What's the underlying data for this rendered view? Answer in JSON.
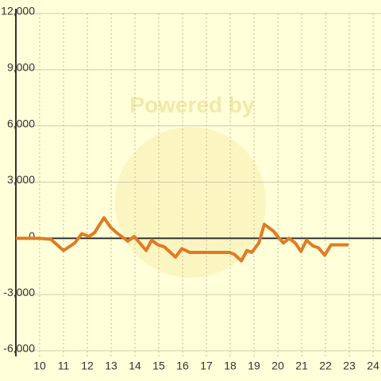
{
  "chart_data": {
    "type": "line",
    "watermark": "Powered by",
    "x": [
      9.0,
      10.0,
      10.47,
      11.0,
      11.47,
      11.77,
      12.07,
      12.3,
      12.5,
      12.7,
      12.97,
      13.23,
      13.7,
      13.97,
      14.47,
      14.7,
      14.97,
      15.23,
      15.7,
      15.97,
      16.3,
      17.97,
      18.17,
      18.47,
      18.7,
      18.9,
      19.2,
      19.43,
      19.8,
      20.23,
      20.47,
      20.73,
      20.97,
      21.2,
      21.47,
      21.7,
      21.97,
      22.23,
      22.97
    ],
    "series": [
      {
        "color": "#e07b24",
        "values": [
          0,
          0,
          -50,
          -650,
          -250,
          250,
          100,
          300,
          700,
          1100,
          600,
          300,
          -150,
          100,
          -650,
          -100,
          -350,
          -450,
          -1000,
          -550,
          -750,
          -750,
          -850,
          -1200,
          -650,
          -750,
          -250,
          750,
          400,
          -250,
          0,
          -250,
          -700,
          -100,
          -400,
          -500,
          -900,
          -350,
          -350
        ]
      }
    ],
    "xlim": [
      9,
      24.33
    ],
    "xticks": [
      10,
      11,
      12,
      13,
      14,
      15,
      16,
      17,
      18,
      19,
      20,
      21,
      22,
      23,
      24
    ],
    "ylim": [
      -6300,
      12000
    ],
    "yticks": [
      {
        "value": 12000,
        "label": "12,000"
      },
      {
        "value": 9000,
        "label": "9,000"
      },
      {
        "value": 6000,
        "label": "6,000"
      },
      {
        "value": 3000,
        "label": "3,000"
      },
      0,
      {
        "value": -3000,
        "label": "-3,000"
      },
      {
        "value": -6000,
        "label": "-6,000"
      }
    ],
    "grid": true
  }
}
